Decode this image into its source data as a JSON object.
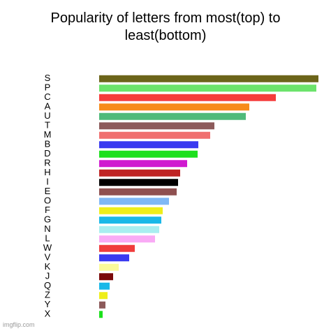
{
  "chart_data": {
    "type": "hbar",
    "title": "Popularity of letters from most(top) to least(bottom)",
    "watermark": "imgflip.com",
    "categories": [
      "S",
      "P",
      "C",
      "A",
      "U",
      "T",
      "M",
      "B",
      "D",
      "R",
      "H",
      "I",
      "E",
      "O",
      "F",
      "G",
      "N",
      "L",
      "W",
      "V",
      "K",
      "J",
      "Q",
      "Z",
      "Y",
      "X"
    ],
    "values": [
      314,
      311,
      253,
      215,
      210,
      165,
      159,
      142,
      141,
      126,
      116,
      113,
      111,
      100,
      91,
      89,
      86,
      80,
      51,
      43,
      28,
      20,
      15,
      12,
      9,
      5
    ],
    "colors": [
      "#6b6419",
      "#6be36b",
      "#f53b3b",
      "#f78b1a",
      "#4fba7a",
      "#8c5a5a",
      "#f07070",
      "#3a3af0",
      "#1de01d",
      "#d01ad0",
      "#bf2424",
      "#000000",
      "#8f5050",
      "#7fb8f5",
      "#eeee1a",
      "#19b8e8",
      "#a8eef0",
      "#f9aaf5",
      "#f03c3c",
      "#3a3af0",
      "#fafa9a",
      "#7a0a0a",
      "#19b8e8",
      "#eeee1a",
      "#8c5a5a",
      "#1de01d"
    ],
    "xlim": [
      0,
      320
    ]
  }
}
